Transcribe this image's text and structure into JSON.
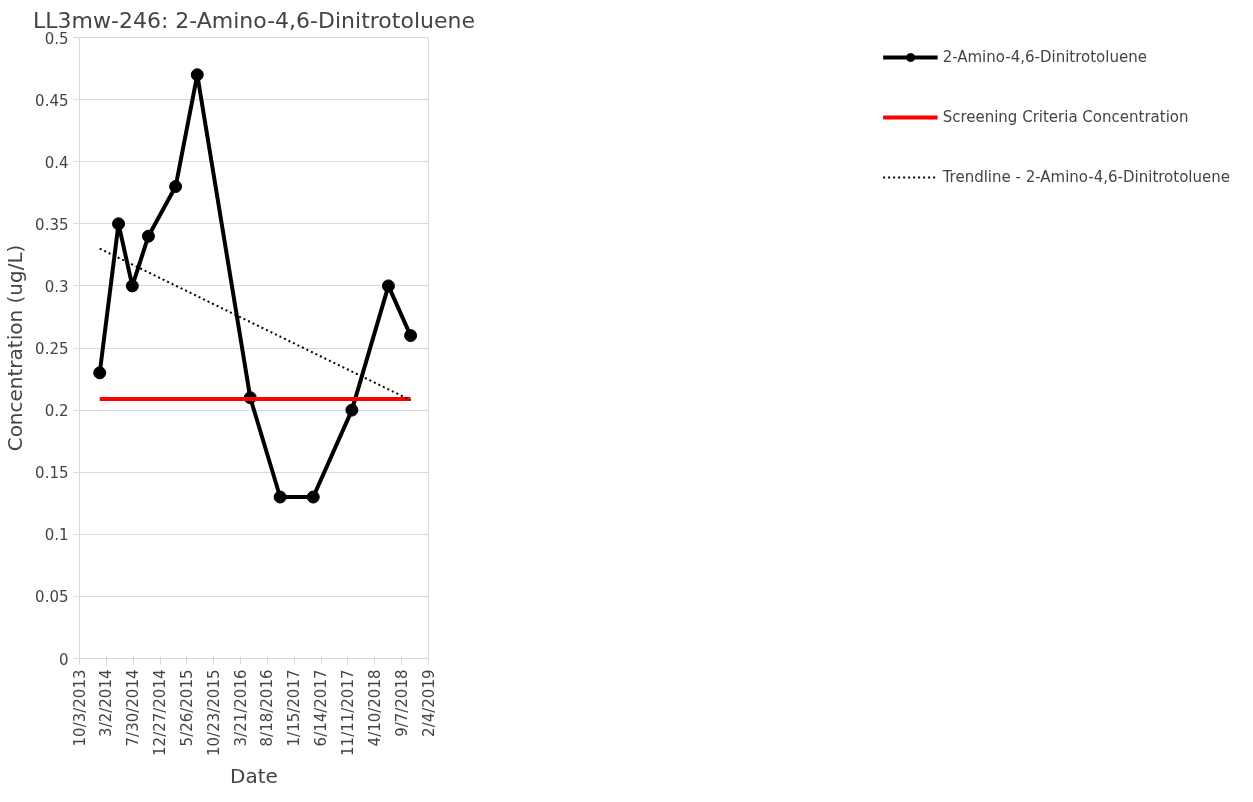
{
  "chart_data": {
    "type": "line",
    "title": "LL3mw-246: 2-Amino-4,6-Dinitrotoluene",
    "xlabel": "Date",
    "ylabel": "Concentration (ug/L)",
    "x": [
      "2014-01-24",
      "2014-05-09",
      "2014-07-25",
      "2014-10-23",
      "2015-03-24",
      "2015-07-23",
      "2016-05-14",
      "2016-10-28",
      "2017-05-01",
      "2017-12-03",
      "2018-06-25",
      "2018-10-27"
    ],
    "series": [
      {
        "name": "2-Amino-4,6-Dinitrotoluene",
        "color": "#000000",
        "marker": "circle",
        "line_style": "solid",
        "values": [
          0.23,
          0.35,
          0.3,
          0.34,
          0.38,
          0.47,
          0.21,
          0.13,
          0.13,
          0.2,
          0.3,
          0.26
        ]
      },
      {
        "name": "Screening Criteria Concentration",
        "color": "#ff0000",
        "marker": "none",
        "line_style": "solid",
        "x": [
          "2014-01-24",
          "2018-10-27"
        ],
        "values": [
          0.209,
          0.209
        ]
      },
      {
        "name": "Trendline - 2-Amino-4,6-Dinitrotoluene",
        "color": "#000000",
        "marker": "none",
        "line_style": "dotted",
        "x": [
          "2014-01-24",
          "2018-10-27"
        ],
        "values": [
          0.33,
          0.208
        ]
      }
    ],
    "xlim": [
      "2013-10-03",
      "2019-02-04"
    ],
    "xticks": [
      {
        "value": "2013-10-03",
        "label": "10/3/2013"
      },
      {
        "value": "2014-03-02",
        "label": "3/2/2014"
      },
      {
        "value": "2014-07-30",
        "label": "7/30/2014"
      },
      {
        "value": "2014-12-27",
        "label": "12/27/2014"
      },
      {
        "value": "2015-05-26",
        "label": "5/26/2015"
      },
      {
        "value": "2015-10-23",
        "label": "10/23/2015"
      },
      {
        "value": "2016-03-21",
        "label": "3/21/2016"
      },
      {
        "value": "2016-08-18",
        "label": "8/18/2016"
      },
      {
        "value": "2017-01-15",
        "label": "1/15/2017"
      },
      {
        "value": "2017-06-14",
        "label": "6/14/2017"
      },
      {
        "value": "2017-11-11",
        "label": "11/11/2017"
      },
      {
        "value": "2018-04-10",
        "label": "4/10/2018"
      },
      {
        "value": "2018-09-07",
        "label": "9/7/2018"
      },
      {
        "value": "2019-02-04",
        "label": "2/4/2019"
      }
    ],
    "ylim": [
      0,
      0.5
    ],
    "yticks": [
      0,
      0.05,
      0.1,
      0.15,
      0.2,
      0.25,
      0.3,
      0.35,
      0.4,
      0.45,
      0.5
    ],
    "grid": "y",
    "legend": "right"
  }
}
